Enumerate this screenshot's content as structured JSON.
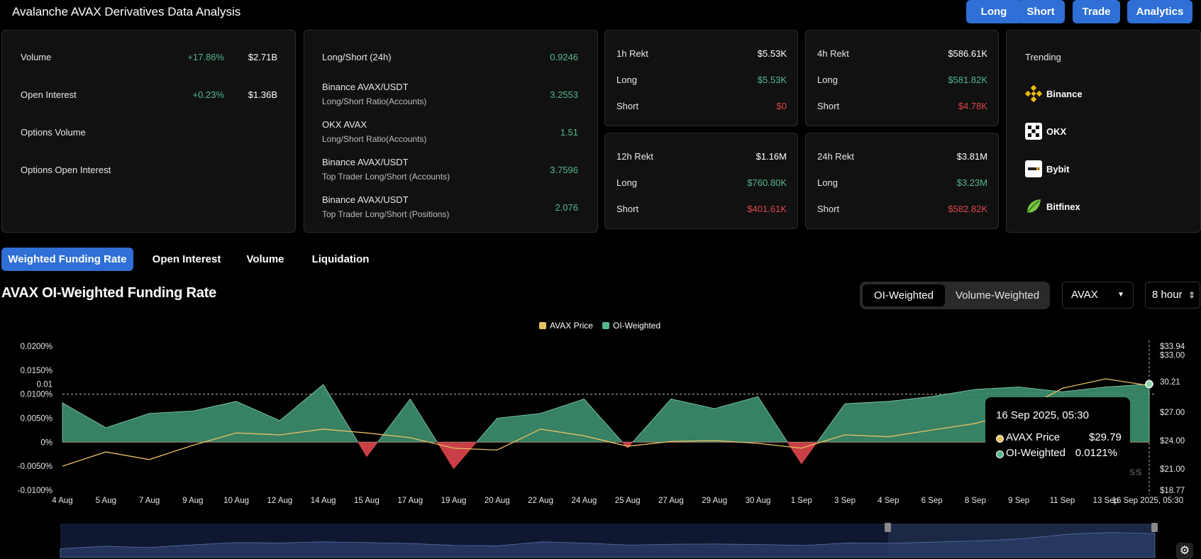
{
  "header": {
    "title": "Avalanche AVAX Derivatives Data Analysis",
    "buttons": [
      "Long",
      "Short",
      "Trade",
      "Analytics"
    ]
  },
  "overview": {
    "rows": [
      {
        "label": "Volume",
        "change": "+17.86%",
        "value": "$2.71B"
      },
      {
        "label": "Open Interest",
        "change": "+0.23%",
        "value": "$1.36B"
      },
      {
        "label": "Options Volume",
        "change": "",
        "value": ""
      },
      {
        "label": "Options Open Interest",
        "change": "",
        "value": ""
      }
    ]
  },
  "ratios": {
    "rows": [
      {
        "label": "Long/Short (24h)",
        "sub": "",
        "value": "0.9246"
      },
      {
        "label": "Binance AVAX/USDT",
        "sub": "Long/Short Ratio(Accounts)",
        "value": "3.2553"
      },
      {
        "label": "OKX AVAX",
        "sub": "Long/Short Ratio(Accounts)",
        "value": "1.51"
      },
      {
        "label": "Binance AVAX/USDT",
        "sub": "Top Trader Long/Short (Accounts)",
        "value": "3.7596"
      },
      {
        "label": "Binance AVAX/USDT",
        "sub": "Top Trader Long/Short (Positions)",
        "value": "2.076"
      }
    ]
  },
  "rekt": [
    {
      "title": "1h Rekt",
      "total": "$5.53K",
      "long_label": "Long",
      "long": "$5.53K",
      "short_label": "Short",
      "short": "$0"
    },
    {
      "title": "4h Rekt",
      "total": "$586.61K",
      "long_label": "Long",
      "long": "$581.82K",
      "short_label": "Short",
      "short": "$4.78K"
    },
    {
      "title": "12h Rekt",
      "total": "$1.16M",
      "long_label": "Long",
      "long": "$760.80K",
      "short_label": "Short",
      "short": "$401.61K"
    },
    {
      "title": "24h Rekt",
      "total": "$3.81M",
      "long_label": "Long",
      "long": "$3.23M",
      "short_label": "Short",
      "short": "$582.82K"
    }
  ],
  "trending": {
    "title": "Trending",
    "items": [
      {
        "name": "Binance",
        "icon": "binance-icon"
      },
      {
        "name": "OKX",
        "icon": "okx-icon"
      },
      {
        "name": "Bybit",
        "icon": "bybit-icon"
      },
      {
        "name": "Bitfinex",
        "icon": "bitfinex-icon"
      }
    ]
  },
  "tabs": [
    "Weighted Funding Rate",
    "Open Interest",
    "Volume",
    "Liquidation"
  ],
  "section": {
    "title": "AVAX OI-Weighted Funding Rate",
    "segment": [
      "OI-Weighted",
      "Volume-Weighted"
    ],
    "coin": "AVAX",
    "interval": "8 hour"
  },
  "colors": {
    "accent": "#2f6fd6",
    "positive": "#54b88a",
    "negative": "#e0464c",
    "price": "#e8c163",
    "area": "#3d8f6f"
  },
  "chart_data": {
    "type": "area",
    "legend": [
      "AVAX Price",
      "OI-Weighted"
    ],
    "x": [
      "4 Aug",
      "5 Aug",
      "7 Aug",
      "9 Aug",
      "10 Aug",
      "12 Aug",
      "14 Aug",
      "15 Aug",
      "17 Aug",
      "19 Aug",
      "20 Aug",
      "22 Aug",
      "24 Aug",
      "25 Aug",
      "27 Aug",
      "29 Aug",
      "30 Aug",
      "1 Sep",
      "3 Sep",
      "4 Sep",
      "6 Sep",
      "8 Sep",
      "9 Sep",
      "11 Sep",
      "13 Sep",
      "16 Sep 2025, 05:30"
    ],
    "y_left_ticks": [
      "0.0200%",
      "0.0150%",
      "0.01",
      "0.0100%",
      "0.0050%",
      "0%",
      "-0.0050%",
      "-0.0100%"
    ],
    "y_right_ticks": [
      "$33.94",
      "$33.00",
      "30.21",
      "$27.00",
      "$24.00",
      "$21.00",
      "$18.77"
    ],
    "ylim_left": [
      -0.01,
      0.02
    ],
    "ylim_right": [
      18.77,
      33.94
    ],
    "series": [
      {
        "name": "OI-Weighted",
        "values": [
          0.0082,
          0.003,
          0.006,
          0.0065,
          0.0085,
          0.0045,
          0.012,
          -0.003,
          0.009,
          -0.0055,
          0.005,
          0.006,
          0.009,
          -0.0012,
          0.009,
          0.007,
          0.0095,
          -0.0045,
          0.008,
          0.0085,
          0.0095,
          0.011,
          0.0115,
          0.0105,
          0.0115,
          0.0121
        ]
      },
      {
        "name": "AVAX Price",
        "values": [
          21.3,
          22.8,
          22.0,
          23.5,
          24.8,
          24.6,
          25.2,
          24.8,
          24.3,
          23.2,
          23.0,
          25.2,
          24.5,
          23.4,
          23.9,
          24.0,
          23.7,
          23.2,
          24.6,
          24.4,
          25.1,
          25.8,
          27.0,
          29.5,
          30.5,
          29.79
        ]
      }
    ],
    "annotations": [
      "0.01",
      "30.21"
    ]
  },
  "tooltip": {
    "date": "16 Sep 2025, 05:30",
    "price_label": "AVAX Price",
    "price": "$29.79",
    "oi_label": "OI-Weighted",
    "oi": "0.0121%"
  },
  "watermark": "coinglass"
}
